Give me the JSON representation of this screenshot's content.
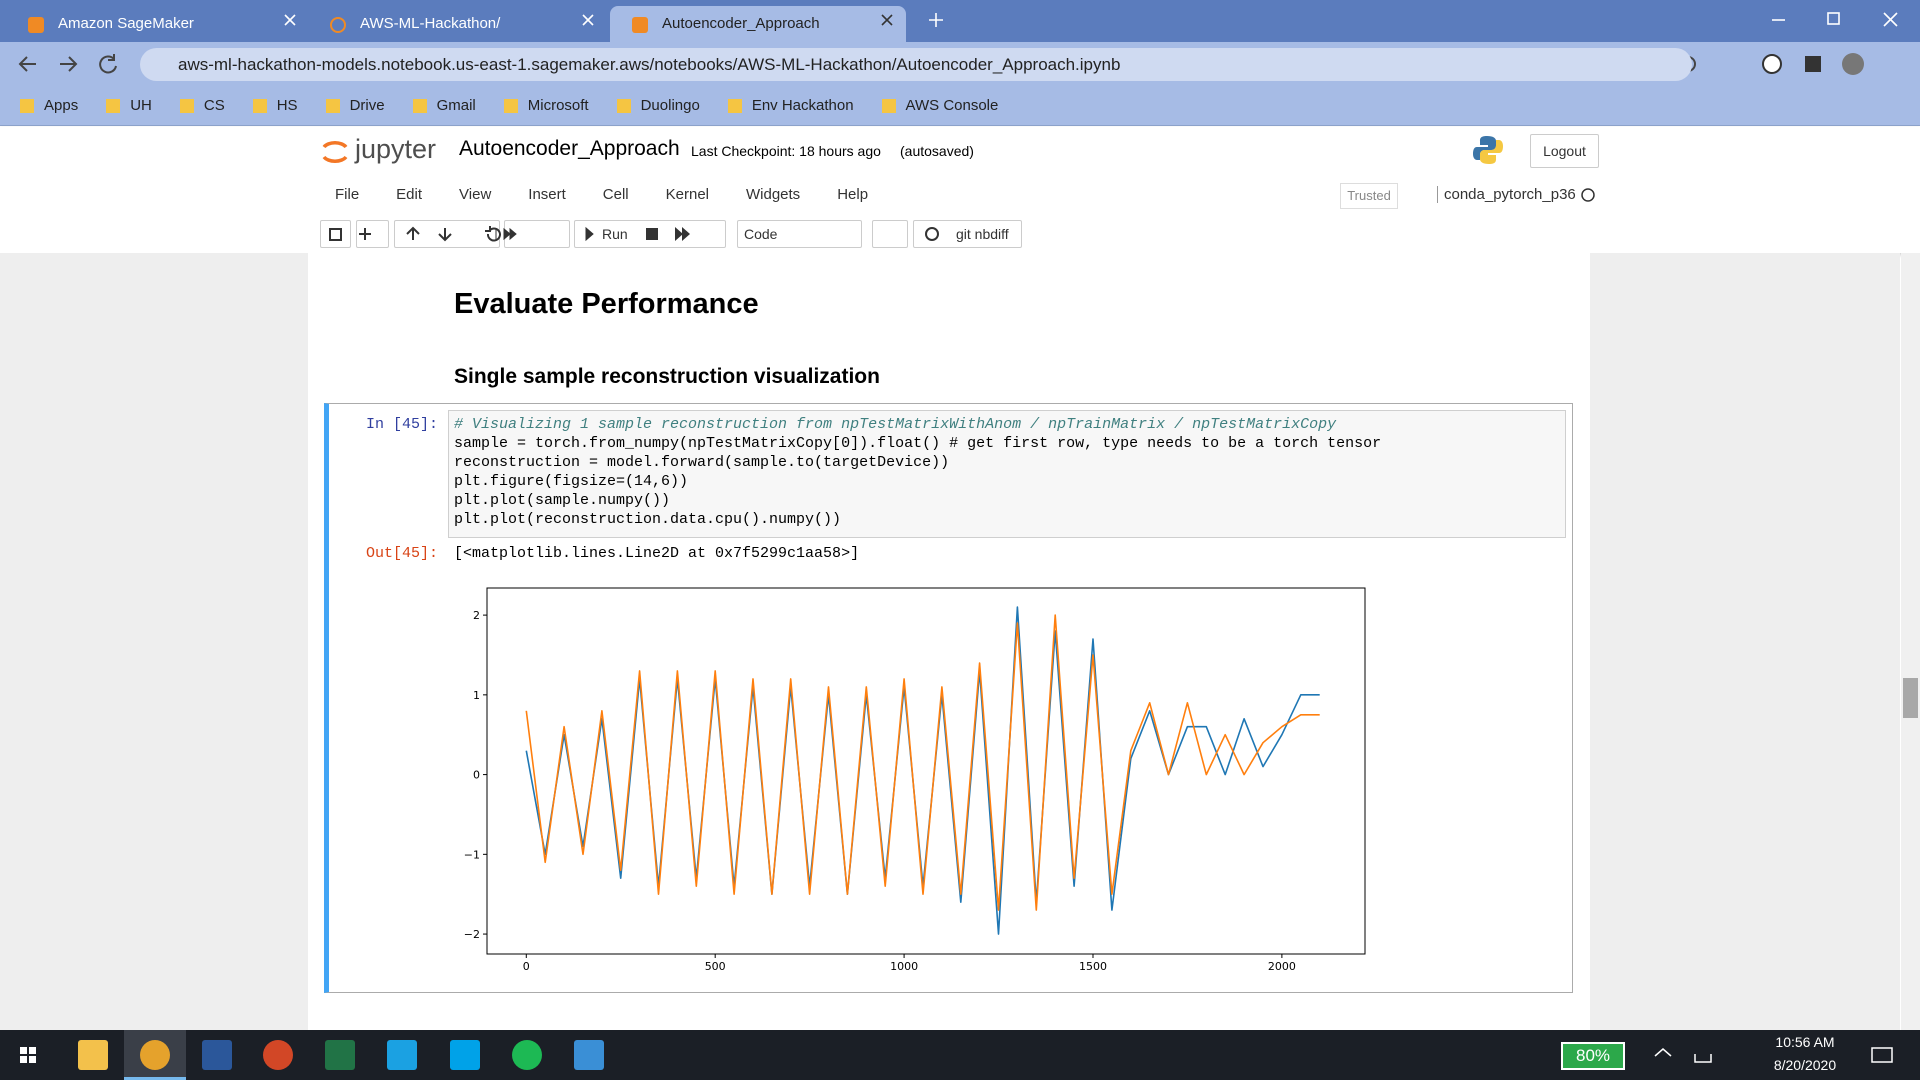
{
  "browser": {
    "tabs": [
      "Amazon SageMaker",
      "AWS-ML-Hackathon/",
      "Autoencoder_Approach"
    ],
    "url": "aws-ml-hackathon-models.notebook.us-east-1.sagemaker.aws/notebooks/AWS-ML-Hackathon/Autoencoder_Approach.ipynb",
    "bookmarks": [
      "Apps",
      "UH",
      "CS",
      "HS",
      "Drive",
      "Gmail",
      "Microsoft",
      "Duolingo",
      "Env Hackathon",
      "AWS Console"
    ]
  },
  "jupyter": {
    "logo": "jupyter",
    "notebook_name": "Autoencoder_Approach",
    "checkpoint": "Last Checkpoint: 18 hours ago",
    "autosave": "(autosaved)",
    "logout": "Logout",
    "menu": [
      "File",
      "Edit",
      "View",
      "Insert",
      "Cell",
      "Kernel",
      "Widgets",
      "Help"
    ],
    "trusted": "Trusted",
    "kernel": "conda_pytorch_p36",
    "run": "Run",
    "cell_type": "Code",
    "nbdiff": "git nbdiff"
  },
  "notebook": {
    "heading": "Evaluate Performance",
    "subheading": "Single sample reconstruction visualization",
    "prompt_in": "In [45]:",
    "code": [
      "# Visualizing 1 sample reconstruction from npTestMatrixWithAnom / npTrainMatrix / npTestMatrixCopy",
      "sample = torch.from_numpy(npTestMatrixCopy[0]).float() # get first row, type needs to be a torch tensor",
      "reconstruction = model.forward(sample.to(targetDevice))",
      "plt.figure(figsize=(14,6))",
      "plt.plot(sample.numpy())",
      "plt.plot(reconstruction.data.cpu().numpy())"
    ],
    "prompt_out": "Out[45]:",
    "output": "[<matplotlib.lines.Line2D at 0x7f5299c1aa58>]"
  },
  "chart_data": {
    "type": "line",
    "x": [
      0,
      50,
      100,
      150,
      200,
      250,
      300,
      350,
      400,
      450,
      500,
      550,
      600,
      650,
      700,
      750,
      800,
      850,
      900,
      950,
      1000,
      1050,
      1100,
      1150,
      1200,
      1250,
      1300,
      1350,
      1400,
      1450,
      1500,
      1550,
      1600,
      1650,
      1700,
      1750,
      1800,
      1850,
      1900,
      1950,
      2000,
      2050,
      2100
    ],
    "series": [
      {
        "color": "#1f77b4",
        "values": [
          0.3,
          -1.0,
          0.5,
          -0.9,
          0.7,
          -1.3,
          1.2,
          -1.4,
          1.2,
          -1.3,
          1.2,
          -1.4,
          1.1,
          -1.5,
          1.1,
          -1.4,
          1.0,
          -1.5,
          1.0,
          -1.3,
          1.1,
          -1.4,
          1.0,
          -1.6,
          1.3,
          -2.0,
          2.1,
          -1.6,
          1.8,
          -1.4,
          1.7,
          -1.7,
          0.2,
          0.8,
          0.0,
          0.6,
          0.6,
          0.0,
          0.7,
          0.1,
          0.5,
          1.0,
          1.0
        ]
      },
      {
        "color": "#ff7f0e",
        "values": [
          0.8,
          -1.1,
          0.6,
          -1.0,
          0.8,
          -1.2,
          1.3,
          -1.5,
          1.3,
          -1.4,
          1.3,
          -1.5,
          1.2,
          -1.5,
          1.2,
          -1.5,
          1.1,
          -1.5,
          1.1,
          -1.4,
          1.2,
          -1.5,
          1.1,
          -1.5,
          1.4,
          -1.7,
          1.9,
          -1.7,
          2.0,
          -1.3,
          1.5,
          -1.5,
          0.3,
          0.9,
          0.0,
          0.9,
          0.0,
          0.5,
          0.0,
          0.4,
          0.6,
          0.75,
          0.75
        ]
      }
    ],
    "xlim": [
      -104,
      2220
    ],
    "ylim": [
      -2.25,
      2.34
    ],
    "xticks": [
      0,
      500,
      1000,
      1500,
      2000
    ],
    "yticks": [
      {
        "value": -2,
        "label": "−2"
      },
      {
        "value": -1,
        "label": "−1"
      },
      0,
      1,
      2
    ]
  },
  "taskbar": {
    "battery": "80%",
    "time": "10:56 AM",
    "date": "8/20/2020"
  }
}
